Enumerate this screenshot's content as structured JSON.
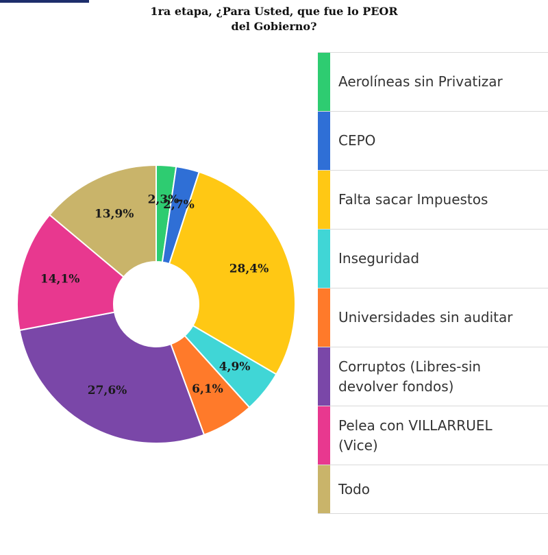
{
  "chart_data": {
    "type": "pie",
    "title": "1ra etapa, ¿Para Usted, que fue lo PEOR del Gobierno?",
    "title_lines": [
      "1ra etapa, ¿Para Usted, que fue lo PEOR",
      "del Gobierno?"
    ],
    "donut": true,
    "categories": [
      "Aerolíneas sin Privatizar",
      "CEPO",
      "Falta sacar Impuestos",
      "Inseguridad",
      "Universidades sin auditar",
      "Corruptos (Libres-sin devolver fondos)",
      "Pelea con VILLARRUEL (Vice)",
      "Todo"
    ],
    "values": [
      2.3,
      2.7,
      28.4,
      4.9,
      6.1,
      27.6,
      14.1,
      13.9
    ],
    "data_labels": [
      "2,3%",
      "2,7%",
      "28,4%",
      "4,9%",
      "6,1%",
      "27,6%",
      "14,1%",
      "13,9%"
    ],
    "colors": [
      "#2ecc71",
      "#2f6fd6",
      "#ffc814",
      "#40d6d6",
      "#ff7a2a",
      "#7a47a8",
      "#e8388f",
      "#c9b46a"
    ],
    "legend_position": "right"
  },
  "legend": {
    "items": [
      {
        "label": "Aerolíneas sin Privatizar",
        "color": "#2ecc71"
      },
      {
        "label": "CEPO",
        "color": "#2f6fd6"
      },
      {
        "label": "Falta sacar Impuestos",
        "color": "#ffc814"
      },
      {
        "label": "Inseguridad",
        "color": "#40d6d6"
      },
      {
        "label": "Universidades sin auditar",
        "color": "#ff7a2a"
      },
      {
        "label": "Corruptos (Libres-sin\ndevolver fondos)",
        "color": "#7a47a8"
      },
      {
        "label": "Pelea con VILLARRUEL\n(Vice)",
        "color": "#e8388f"
      },
      {
        "label": "Todo",
        "color": "#c9b46a"
      }
    ]
  }
}
